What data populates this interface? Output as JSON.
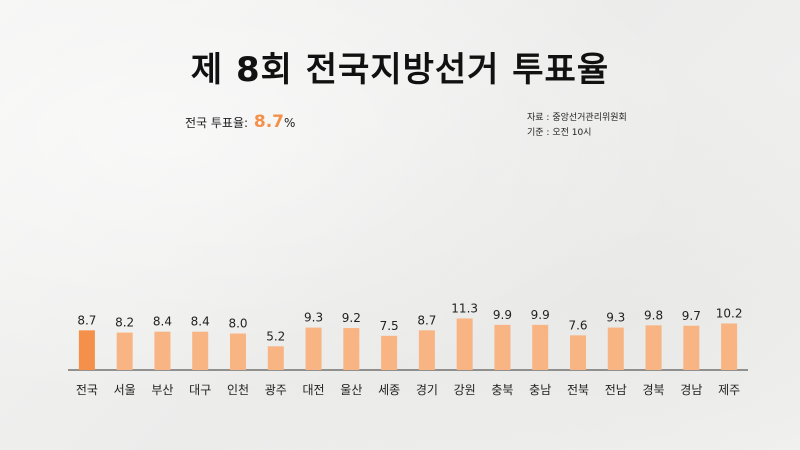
{
  "title": "제 8회 전국지방선거 투표율",
  "summary": {
    "label": "전국 투표율:",
    "value": "8.7",
    "unit": "%"
  },
  "source": {
    "line1": "자료 : 중앙선거관리위원회",
    "line2": "기준 : 오전 10시"
  },
  "colors": {
    "highlight": "#f5904a",
    "bar": "#f8b482",
    "axis": "#333333"
  },
  "chart_data": {
    "type": "bar",
    "categories": [
      "전국",
      "서울",
      "부산",
      "대구",
      "인천",
      "광주",
      "대전",
      "울산",
      "세종",
      "경기",
      "강원",
      "충북",
      "충남",
      "전북",
      "전남",
      "경북",
      "경남",
      "제주"
    ],
    "values": [
      8.7,
      8.2,
      8.4,
      8.4,
      8.0,
      5.2,
      9.3,
      9.2,
      7.5,
      8.7,
      11.3,
      9.9,
      9.9,
      7.6,
      9.3,
      9.8,
      9.7,
      10.2
    ],
    "value_labels": [
      "8.7",
      "8.2",
      "8.4",
      "8.4",
      "8.0",
      "5.2",
      "9.3",
      "9.2",
      "7.5",
      "8.7",
      "11.3",
      "9.9",
      "9.9",
      "7.6",
      "9.3",
      "9.8",
      "9.7",
      "10.2"
    ],
    "highlight_index": 0,
    "ylim": [
      0,
      15
    ],
    "xlabel": "",
    "ylabel": "",
    "grid": false
  }
}
